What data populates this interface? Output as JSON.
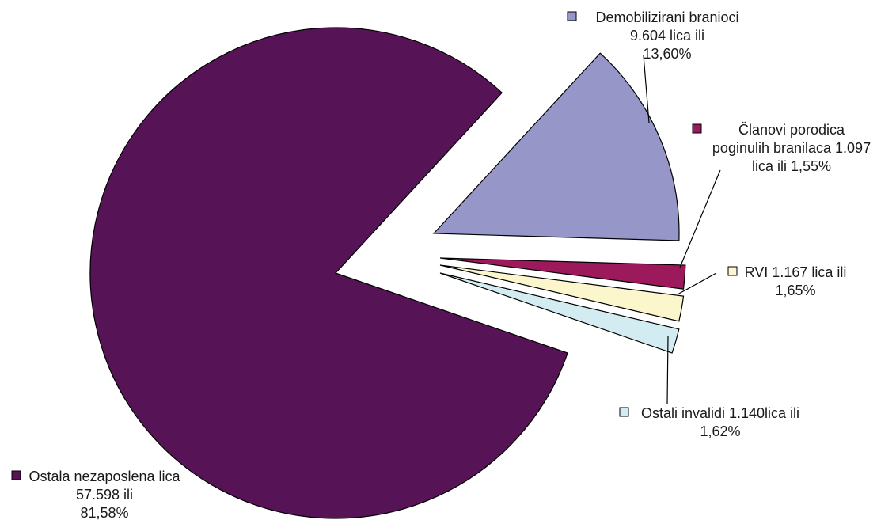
{
  "chart_data": {
    "type": "pie",
    "legend": "none",
    "slices": [
      {
        "name": "Demobilizirani branioci",
        "count": 9604,
        "percent": 13.6,
        "color": "#9696c8",
        "label_lines": [
          "Demobilizirani branioci",
          "9.604 lica ili",
          "13,60%"
        ]
      },
      {
        "name": "Članovi porodica poginulih branilaca",
        "count": 1097,
        "percent": 1.55,
        "color": "#9c1a5c",
        "label_lines": [
          "Članovi porodica",
          "poginulih branilaca 1.097",
          "lica ili 1,55%"
        ]
      },
      {
        "name": "RVI",
        "count": 1167,
        "percent": 1.65,
        "color": "#fbf6cc",
        "label_lines": [
          "RVI 1.167 lica ili",
          "1,65%"
        ]
      },
      {
        "name": "Ostali invalidi",
        "count": 1140,
        "percent": 1.62,
        "color": "#d2ecf2",
        "label_lines": [
          "Ostali invalidi 1.140lica  ili",
          "1,62%"
        ]
      },
      {
        "name": "Ostala nezaposlena lica",
        "count": 57598,
        "percent": 81.58,
        "color": "#561456",
        "label_lines": [
          "Ostala nezaposlena lica",
          "57.598 ili",
          "81,58%"
        ]
      }
    ]
  }
}
